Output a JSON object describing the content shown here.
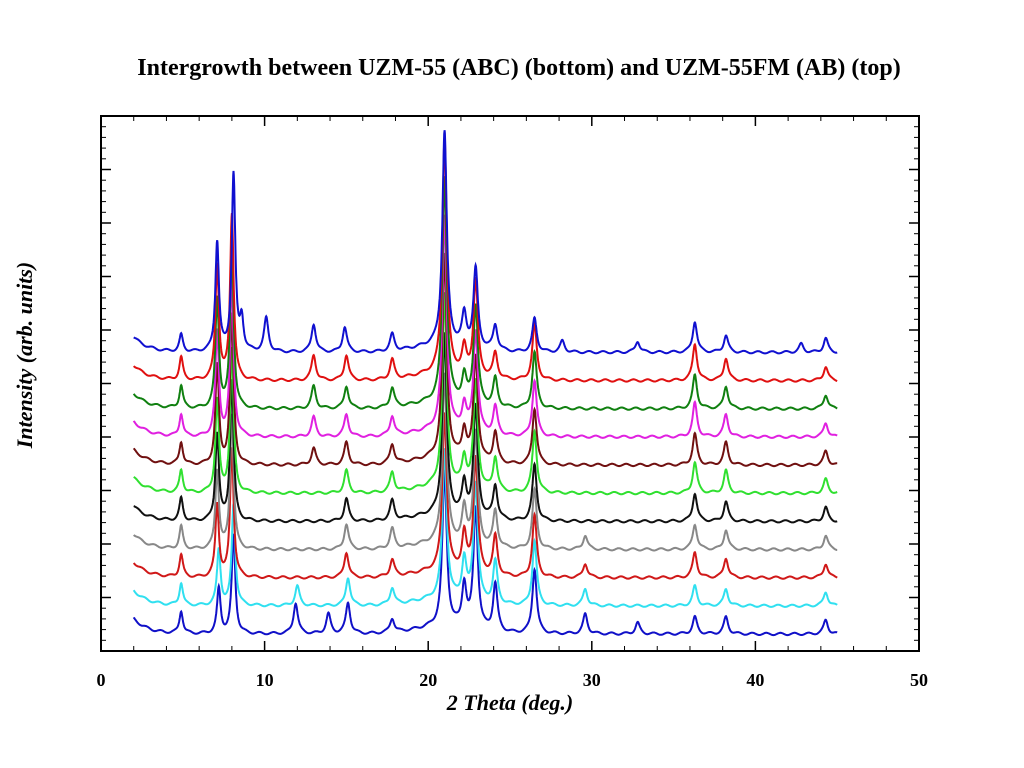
{
  "chart_data": {
    "type": "line",
    "title": "Intergrowth between UZM-55 (ABC) (bottom) and UZM-55FM (AB) (top)",
    "xlabel": "2 Theta (deg.)",
    "ylabel": "Intensity (arb. units)",
    "xlim": [
      0,
      50
    ],
    "x_range_data": [
      2,
      45
    ],
    "x_ticks": [
      "0",
      "10",
      "20",
      "30",
      "40",
      "50"
    ],
    "y_tick_labels": "none",
    "grid": false,
    "legend": "none",
    "series_order": "bottom to top, stacked with constant offset",
    "offset_per_series": 1,
    "ylim": [
      0,
      19
    ],
    "peaks_2theta_common": [
      4.9,
      7.1,
      8.0,
      21.0,
      22.2,
      22.9,
      24.1,
      26.5,
      28.2,
      29.6,
      32.8,
      36.3,
      38.2,
      42.8,
      44.3
    ],
    "series": [
      {
        "color": "#1010c8",
        "peaks": [
          [
            4.9,
            0.8
          ],
          [
            7.2,
            1.6
          ],
          [
            8.1,
            3.5
          ],
          [
            11.9,
            1.1
          ],
          [
            13.9,
            0.7
          ],
          [
            15.1,
            1.1
          ],
          [
            17.8,
            0.5
          ],
          [
            21.0,
            5.5
          ],
          [
            22.2,
            1.5
          ],
          [
            22.9,
            4.3
          ],
          [
            24.1,
            1.7
          ],
          [
            26.5,
            2.3
          ],
          [
            29.6,
            0.7
          ],
          [
            32.8,
            0.4
          ],
          [
            36.3,
            0.6
          ],
          [
            38.2,
            0.6
          ],
          [
            44.3,
            0.5
          ]
        ]
      },
      {
        "color": "#30e0f0",
        "peaks": [
          [
            4.9,
            0.8
          ],
          [
            7.2,
            2.0
          ],
          [
            8.1,
            3.6
          ],
          [
            12.0,
            0.7
          ],
          [
            15.1,
            1.0
          ],
          [
            17.8,
            0.6
          ],
          [
            21.0,
            5.3
          ],
          [
            22.2,
            1.4
          ],
          [
            22.9,
            4.2
          ],
          [
            24.1,
            1.5
          ],
          [
            26.5,
            2.3
          ],
          [
            29.6,
            0.6
          ],
          [
            36.3,
            0.7
          ],
          [
            38.2,
            0.6
          ],
          [
            44.3,
            0.5
          ]
        ]
      },
      {
        "color": "#d01818",
        "peaks": [
          [
            4.9,
            0.8
          ],
          [
            7.1,
            2.6
          ],
          [
            8.0,
            4.6
          ],
          [
            15.0,
            0.9
          ],
          [
            17.8,
            0.6
          ],
          [
            21.0,
            5.6
          ],
          [
            22.2,
            1.3
          ],
          [
            22.9,
            4.1
          ],
          [
            24.1,
            1.4
          ],
          [
            26.5,
            2.2
          ],
          [
            29.6,
            0.5
          ],
          [
            36.3,
            0.9
          ],
          [
            38.2,
            0.7
          ],
          [
            44.3,
            0.5
          ]
        ]
      },
      {
        "color": "#888888",
        "peaks": [
          [
            4.9,
            0.8
          ],
          [
            7.1,
            2.8
          ],
          [
            8.0,
            4.8
          ],
          [
            15.0,
            0.9
          ],
          [
            17.8,
            0.7
          ],
          [
            21.0,
            6.0
          ],
          [
            22.2,
            1.2
          ],
          [
            22.9,
            4.0
          ],
          [
            24.1,
            1.3
          ],
          [
            26.5,
            2.1
          ],
          [
            29.6,
            0.5
          ],
          [
            36.3,
            0.9
          ],
          [
            38.2,
            0.7
          ],
          [
            44.3,
            0.5
          ]
        ]
      },
      {
        "color": "#101010",
        "peaks": [
          [
            4.9,
            0.8
          ],
          [
            7.1,
            3.1
          ],
          [
            8.0,
            5.0
          ],
          [
            15.0,
            0.8
          ],
          [
            17.8,
            0.7
          ],
          [
            21.0,
            6.4
          ],
          [
            22.2,
            1.1
          ],
          [
            22.9,
            3.9
          ],
          [
            24.1,
            1.2
          ],
          [
            26.5,
            2.0
          ],
          [
            36.3,
            1.0
          ],
          [
            38.2,
            0.7
          ],
          [
            44.3,
            0.5
          ]
        ]
      },
      {
        "color": "#30e030",
        "peaks": [
          [
            4.9,
            0.8
          ],
          [
            7.1,
            3.3
          ],
          [
            8.0,
            5.1
          ],
          [
            15.0,
            0.8
          ],
          [
            17.8,
            0.7
          ],
          [
            21.0,
            6.8
          ],
          [
            22.2,
            1.0
          ],
          [
            22.9,
            3.8
          ],
          [
            24.1,
            1.2
          ],
          [
            26.5,
            2.2
          ],
          [
            36.3,
            1.1
          ],
          [
            38.2,
            0.8
          ],
          [
            44.3,
            0.5
          ]
        ]
      },
      {
        "color": "#701010",
        "peaks": [
          [
            4.9,
            0.8
          ],
          [
            7.1,
            3.5
          ],
          [
            8.0,
            5.3
          ],
          [
            13.0,
            0.6
          ],
          [
            15.0,
            0.8
          ],
          [
            17.8,
            0.7
          ],
          [
            21.0,
            7.2
          ],
          [
            22.2,
            1.0
          ],
          [
            22.9,
            3.7
          ],
          [
            24.1,
            1.1
          ],
          [
            26.5,
            2.0
          ],
          [
            36.3,
            1.1
          ],
          [
            38.2,
            0.8
          ],
          [
            44.3,
            0.5
          ]
        ]
      },
      {
        "color": "#e020e0",
        "peaks": [
          [
            4.9,
            0.8
          ],
          [
            7.1,
            3.7
          ],
          [
            8.0,
            5.5
          ],
          [
            13.0,
            0.7
          ],
          [
            15.0,
            0.8
          ],
          [
            17.8,
            0.7
          ],
          [
            21.0,
            7.6
          ],
          [
            22.2,
            0.9
          ],
          [
            22.9,
            3.6
          ],
          [
            24.1,
            1.0
          ],
          [
            26.5,
            2.0
          ],
          [
            36.3,
            1.2
          ],
          [
            38.2,
            0.8
          ],
          [
            44.3,
            0.5
          ]
        ]
      },
      {
        "color": "#108010",
        "peaks": [
          [
            4.9,
            0.8
          ],
          [
            7.1,
            3.9
          ],
          [
            8.0,
            5.7
          ],
          [
            13.0,
            0.8
          ],
          [
            15.0,
            0.8
          ],
          [
            17.8,
            0.7
          ],
          [
            21.0,
            8.0
          ],
          [
            22.2,
            0.9
          ],
          [
            22.9,
            3.5
          ],
          [
            24.1,
            1.0
          ],
          [
            26.5,
            2.0
          ],
          [
            36.3,
            1.2
          ],
          [
            38.2,
            0.8
          ],
          [
            44.3,
            0.5
          ]
        ]
      },
      {
        "color": "#e01010",
        "peaks": [
          [
            4.9,
            0.8
          ],
          [
            7.1,
            4.1
          ],
          [
            8.0,
            5.9
          ],
          [
            13.0,
            0.9
          ],
          [
            15.0,
            0.9
          ],
          [
            17.8,
            0.7
          ],
          [
            21.0,
            8.4
          ],
          [
            22.2,
            0.9
          ],
          [
            22.9,
            3.4
          ],
          [
            24.1,
            0.9
          ],
          [
            26.5,
            2.0
          ],
          [
            36.3,
            1.3
          ],
          [
            38.2,
            0.8
          ],
          [
            44.3,
            0.5
          ]
        ]
      },
      {
        "color": "#1010d0",
        "peaks": [
          [
            4.9,
            0.6
          ],
          [
            7.1,
            3.9
          ],
          [
            8.1,
            6.3
          ],
          [
            8.6,
            1.1
          ],
          [
            10.1,
            1.2
          ],
          [
            13.0,
            1.0
          ],
          [
            14.9,
            0.9
          ],
          [
            17.8,
            0.6
          ],
          [
            21.0,
            7.6
          ],
          [
            22.2,
            1.1
          ],
          [
            22.9,
            2.8
          ],
          [
            24.1,
            0.9
          ],
          [
            26.5,
            1.2
          ],
          [
            28.2,
            0.4
          ],
          [
            32.8,
            0.4
          ],
          [
            36.3,
            1.1
          ],
          [
            38.2,
            0.6
          ],
          [
            42.8,
            0.3
          ],
          [
            44.3,
            0.5
          ]
        ]
      }
    ]
  }
}
